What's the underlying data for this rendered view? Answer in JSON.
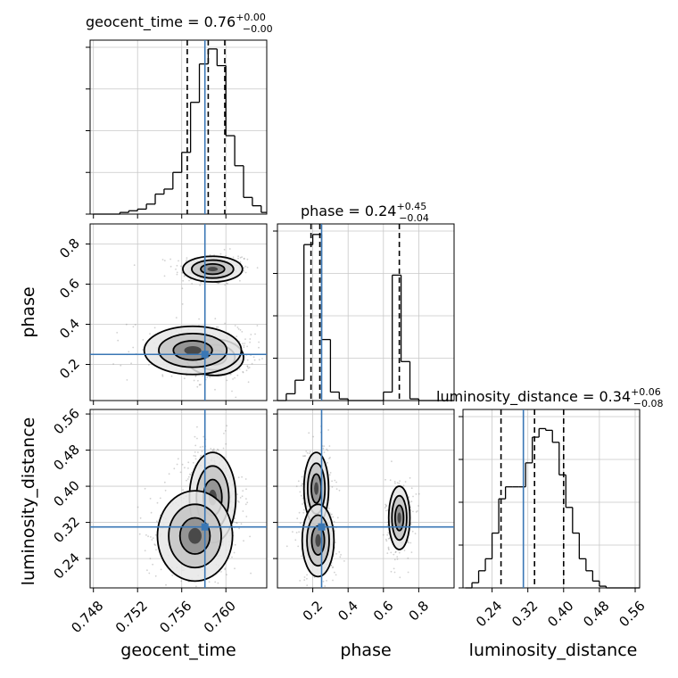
{
  "chart_data": {
    "type": "corner",
    "parameters": [
      "geocent_time",
      "phase",
      "luminosity_distance"
    ],
    "truths": {
      "geocent_time": 0.7581,
      "phase": 0.25,
      "luminosity_distance": 0.31
    },
    "colors": {
      "truth": "#3a77b5",
      "line": "#000000",
      "grid": "#c8c8c8",
      "scatter": "#7a7a7a"
    },
    "titles": [
      {
        "param": "geocent_time",
        "base": "geocent_time = 0.76",
        "plus": "+0.00",
        "minus": "−0.00"
      },
      {
        "param": "phase",
        "base": "phase = 0.24",
        "plus": "+0.45",
        "minus": "−0.04"
      },
      {
        "param": "luminosity_distance",
        "base": "luminosity_distance = 0.34",
        "plus": "+0.06",
        "minus": "−0.08"
      }
    ],
    "axis_labels": {
      "x": [
        "geocent_time",
        "phase",
        "luminosity_distance"
      ],
      "y": [
        "phase",
        "luminosity_distance"
      ]
    },
    "ranges": {
      "geocent_time": [
        0.7477,
        0.7637
      ],
      "phase": [
        0.0,
        1.0
      ],
      "phase_y": [
        0.02,
        0.9
      ],
      "luminosity_distance": [
        0.175,
        0.57
      ]
    },
    "ticks": {
      "geocent_time": {
        "values": [
          0.748,
          0.752,
          0.756,
          0.76
        ],
        "labels": [
          "0.748",
          "0.752",
          "0.756",
          "0.760"
        ]
      },
      "phase": {
        "values": [
          0.2,
          0.4,
          0.6,
          0.8
        ],
        "labels": [
          "0.2",
          "0.4",
          "0.6",
          "0.8"
        ]
      },
      "luminosity_distance": {
        "values": [
          0.24,
          0.32,
          0.4,
          0.48,
          0.56
        ],
        "labels": [
          "0.24",
          "0.32",
          "0.40",
          "0.48",
          "0.56"
        ]
      }
    },
    "quantiles": {
      "geocent_time": [
        0.7565,
        0.7584,
        0.7599
      ],
      "phase": [
        0.19,
        0.24,
        0.69
      ],
      "luminosity_distance": [
        0.26,
        0.335,
        0.4
      ]
    },
    "histograms": {
      "geocent_time": {
        "edges": [
          0.748,
          0.7488,
          0.7496,
          0.7504,
          0.7512,
          0.752,
          0.7528,
          0.7536,
          0.7544,
          0.7552,
          0.756,
          0.7568,
          0.7576,
          0.7584,
          0.7592,
          0.76,
          0.7608,
          0.7616,
          0.7624,
          0.7632,
          0.764
        ],
        "heights": [
          0.0,
          0.0,
          0.0,
          0.01,
          0.02,
          0.03,
          0.06,
          0.12,
          0.15,
          0.25,
          0.37,
          0.67,
          0.9,
          0.99,
          0.89,
          0.47,
          0.29,
          0.1,
          0.05,
          0.01
        ]
      },
      "phase": {
        "edges": [
          0.0,
          0.05,
          0.1,
          0.15,
          0.2,
          0.25,
          0.3,
          0.35,
          0.4,
          0.45,
          0.5,
          0.55,
          0.6,
          0.65,
          0.7,
          0.75,
          0.8,
          0.85,
          0.9,
          0.95,
          1.0
        ],
        "heights": [
          0.0,
          0.04,
          0.12,
          0.92,
          0.98,
          0.36,
          0.05,
          0.01,
          0.0,
          0.0,
          0.0,
          0.0,
          0.05,
          0.74,
          0.23,
          0.01,
          0.0,
          0.0,
          0.0,
          0.0
        ]
      },
      "luminosity_distance": {
        "edges": [
          0.18,
          0.195,
          0.21,
          0.225,
          0.24,
          0.255,
          0.27,
          0.285,
          0.3,
          0.315,
          0.33,
          0.345,
          0.36,
          0.375,
          0.39,
          0.405,
          0.42,
          0.435,
          0.45,
          0.465,
          0.48,
          0.495,
          0.51,
          0.525,
          0.54,
          0.555,
          0.57
        ],
        "heights": [
          0.0,
          0.03,
          0.1,
          0.17,
          0.32,
          0.52,
          0.59,
          0.59,
          0.59,
          0.73,
          0.88,
          0.93,
          0.92,
          0.85,
          0.66,
          0.47,
          0.32,
          0.17,
          0.1,
          0.04,
          0.01,
          0.0,
          0.0,
          0.0,
          0.0,
          0.0
        ]
      }
    },
    "density_2d": {
      "phase_vs_geocent_time": {
        "blobs": [
          {
            "cx": 0.7588,
            "cy": 0.675,
            "sx": 0.00135,
            "sy": 0.032,
            "w": 0.36
          },
          {
            "cx": 0.759,
            "cy": 0.235,
            "sx": 0.0013,
            "sy": 0.045,
            "w": 0.4
          },
          {
            "cx": 0.757,
            "cy": 0.27,
            "sx": 0.0022,
            "sy": 0.06,
            "w": 0.24
          }
        ]
      },
      "luminosity_distance_vs_geocent_time": {
        "blobs": [
          {
            "cx": 0.7588,
            "cy": 0.375,
            "sx": 0.00105,
            "sy": 0.05,
            "w": 0.6
          },
          {
            "cx": 0.7572,
            "cy": 0.29,
            "sx": 0.0017,
            "sy": 0.05,
            "w": 0.4
          }
        ]
      },
      "luminosity_distance_vs_phase": {
        "blobs": [
          {
            "cx": 0.22,
            "cy": 0.395,
            "sx": 0.035,
            "sy": 0.04,
            "w": 0.38
          },
          {
            "cx": 0.23,
            "cy": 0.28,
            "sx": 0.045,
            "sy": 0.04,
            "w": 0.24
          },
          {
            "cx": 0.69,
            "cy": 0.33,
            "sx": 0.03,
            "sy": 0.035,
            "w": 0.38
          }
        ]
      }
    }
  }
}
